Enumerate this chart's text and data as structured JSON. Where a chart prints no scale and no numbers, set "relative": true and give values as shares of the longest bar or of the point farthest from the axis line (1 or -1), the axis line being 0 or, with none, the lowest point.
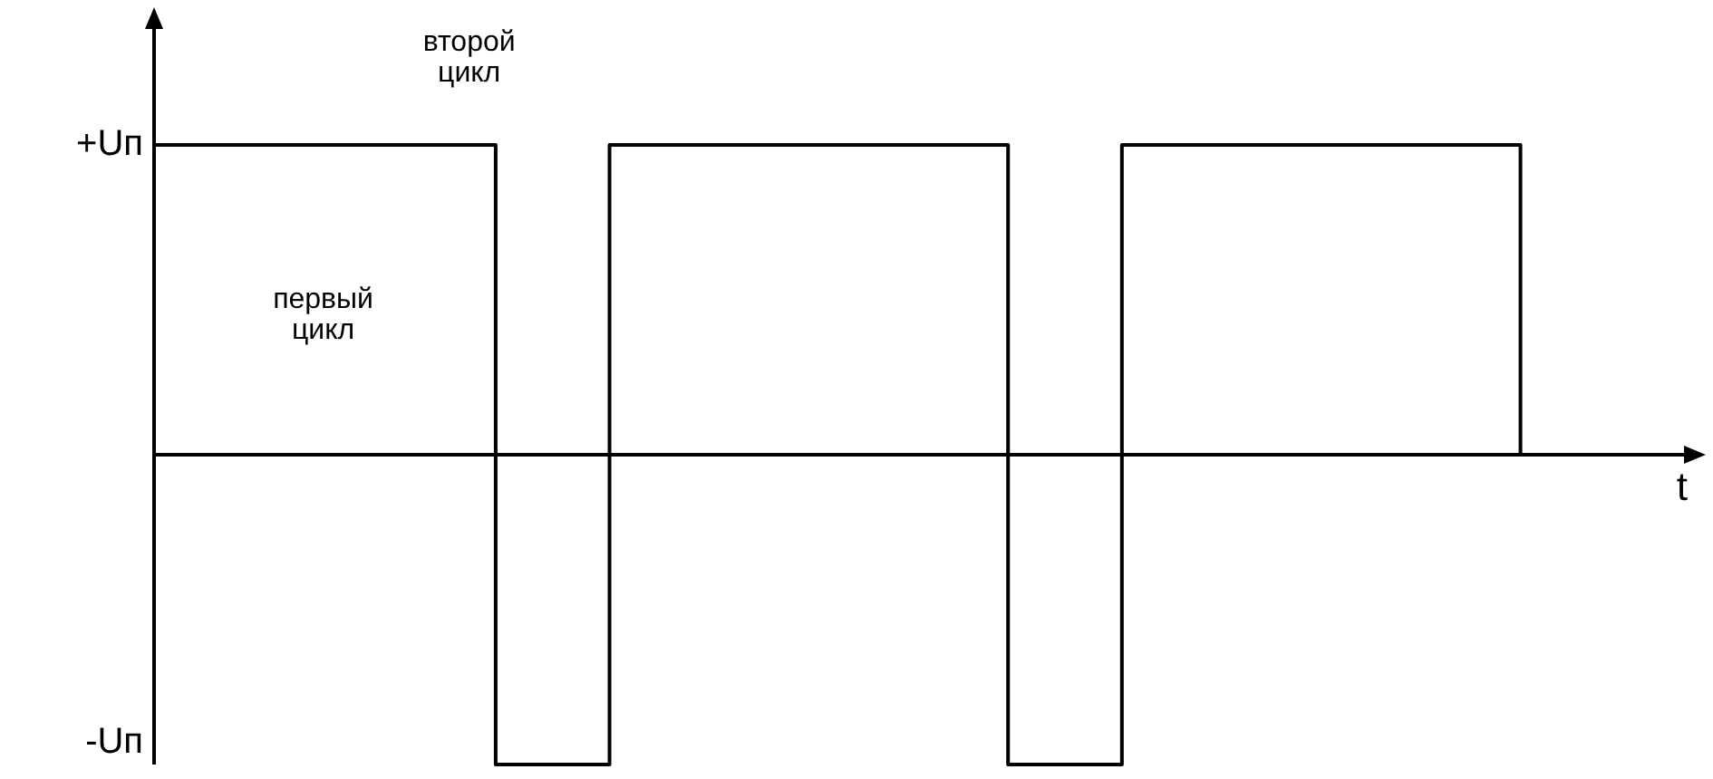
{
  "chart_data": {
    "type": "step",
    "xlabel": "t",
    "relative": true,
    "categories": [
      null,
      null,
      null,
      null,
      null,
      null,
      null,
      null,
      null,
      null,
      null,
      null,
      null,
      null,
      null,
      null,
      null,
      null,
      null,
      null,
      null,
      null,
      null,
      null,
      null,
      null,
      null,
      null
    ],
    "series": [
      {
        "color": "#000000",
        "values": [
          1,
          1,
          1,
          1,
          1,
          1,
          -1,
          -1,
          1,
          1,
          1,
          1,
          1,
          1,
          1,
          -1,
          -1,
          1,
          1,
          1,
          1,
          1,
          1,
          1,
          0,
          null,
          null,
          null
        ]
      }
    ],
    "tick_labels": false,
    "grid": false,
    "legend": false,
    "marker": "none",
    "annotations": [
      "+Uп",
      "-Uп",
      "первый цикл",
      "второй цикл"
    ]
  }
}
